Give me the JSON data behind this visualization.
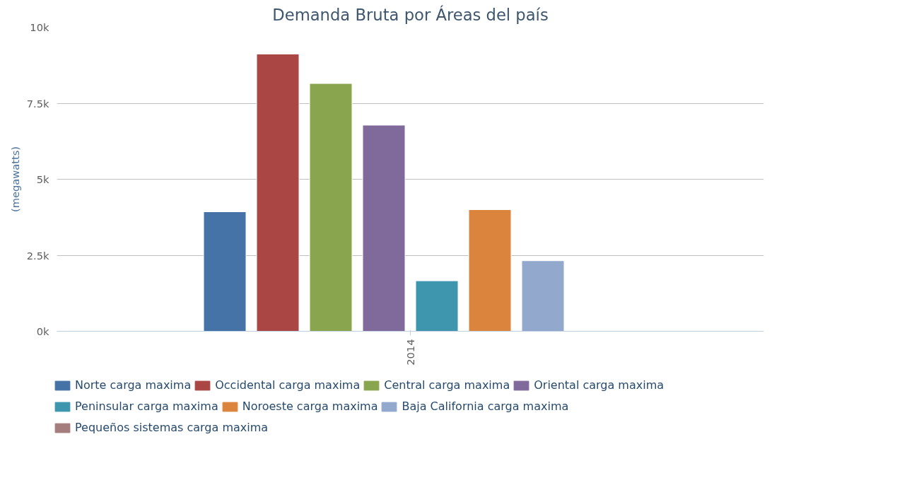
{
  "chart_data": {
    "type": "bar",
    "title": "Demanda Bruta por Áreas del país",
    "ylabel": "(megawatts)",
    "categories": [
      "2014"
    ],
    "series": [
      {
        "name": "Norte carga maxima",
        "color": "#4572a7",
        "values": [
          3930
        ]
      },
      {
        "name": "Occidental carga maxima",
        "color": "#aa4643",
        "values": [
          9120
        ]
      },
      {
        "name": "Central carga maxima",
        "color": "#89a54e",
        "values": [
          8150
        ]
      },
      {
        "name": "Oriental carga maxima",
        "color": "#80699b",
        "values": [
          6780
        ]
      },
      {
        "name": "Peninsular carga maxima",
        "color": "#3d96ae",
        "values": [
          1660
        ]
      },
      {
        "name": "Noroeste carga maxima",
        "color": "#db843d",
        "values": [
          4000
        ]
      },
      {
        "name": "Baja California carga maxima",
        "color": "#92a8cd",
        "values": [
          2320
        ]
      },
      {
        "name": "Pequeños sistemas carga maxima",
        "color": "#a47d7c",
        "values": [
          null
        ]
      }
    ],
    "ylim": [
      0,
      10000
    ],
    "yticks": [
      {
        "value": 0,
        "label": "0k"
      },
      {
        "value": 2500,
        "label": "2.5k"
      },
      {
        "value": 5000,
        "label": "5k"
      },
      {
        "value": 7500,
        "label": "7.5k"
      },
      {
        "value": 10000,
        "label": "10k"
      }
    ],
    "grid": "y",
    "legend": "bottom"
  }
}
